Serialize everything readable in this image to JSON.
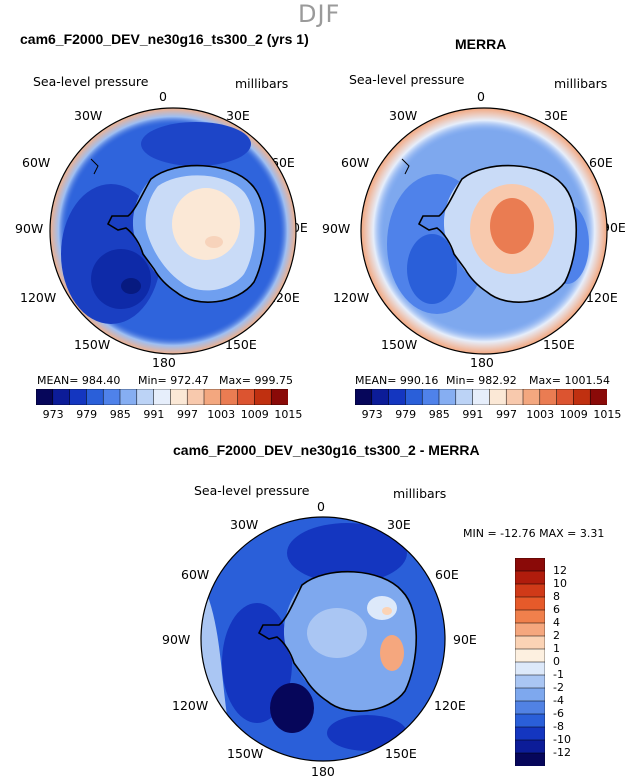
{
  "figure": {
    "season": "DJF",
    "colors": {
      "blue_deep": "#0a0a88",
      "blue_dark": "#1530b8",
      "blue_mid": "#2a5fd9",
      "blue_light": "#6f9ff0",
      "blue_pale": "#c9dbf7",
      "cream": "#fbe8d6",
      "orange": "#f3a77f",
      "red": "#c03010"
    }
  },
  "panels": [
    {
      "title": "cam6_F2000_DEV_ne30g16_ts300_2 (yrs 1)",
      "variable": "Sea-level pressure",
      "units": "millibars",
      "stats": {
        "mean": "MEAN= 984.40",
        "min": "Min= 972.47",
        "max": "Max= 999.75"
      }
    },
    {
      "title": "MERRA",
      "variable": "Sea-level pressure",
      "units": "millibars",
      "stats": {
        "mean": "MEAN= 990.16",
        "min": "Min= 982.92",
        "max": "Max= 1001.54"
      }
    },
    {
      "title": "cam6_F2000_DEV_ne30g16_ts300_2 - MERRA",
      "variable": "Sea-level pressure",
      "units": "millibars",
      "stats_line": "MIN = -12.76 MAX =  3.31"
    }
  ],
  "longitude_labels": [
    "0",
    "30E",
    "60E",
    "90E",
    "120E",
    "150E",
    "180",
    "150W",
    "120W",
    "90W",
    "60W",
    "30W"
  ],
  "colorbar_horizontal": {
    "ticks": [
      "973",
      "979",
      "985",
      "991",
      "997",
      "1003",
      "1009",
      "1015"
    ],
    "colors": [
      "#06065a",
      "#0c1c98",
      "#1436c0",
      "#2a5fd9",
      "#4f82ea",
      "#86aef2",
      "#bcd3f6",
      "#e6eefb",
      "#fbe8d6",
      "#f8c9ad",
      "#f3a77f",
      "#ea7c52",
      "#dc5430",
      "#c03010",
      "#8a0a08"
    ]
  },
  "colorbar_vertical": {
    "ticks": [
      "12",
      "10",
      "8",
      "6",
      "4",
      "2",
      "1",
      "0",
      "-1",
      "-2",
      "-4",
      "-6",
      "-8",
      "-10",
      "-12"
    ],
    "colors": [
      "#8a0a08",
      "#b01c0c",
      "#d03a18",
      "#e65a2a",
      "#f0804c",
      "#f5a77e",
      "#fbd3b5",
      "#fdf0e0",
      "#dde9fa",
      "#aac6f3",
      "#7ea8ee",
      "#5182e4",
      "#2a5fd9",
      "#1436c0",
      "#0c1c98",
      "#06065a"
    ]
  }
}
